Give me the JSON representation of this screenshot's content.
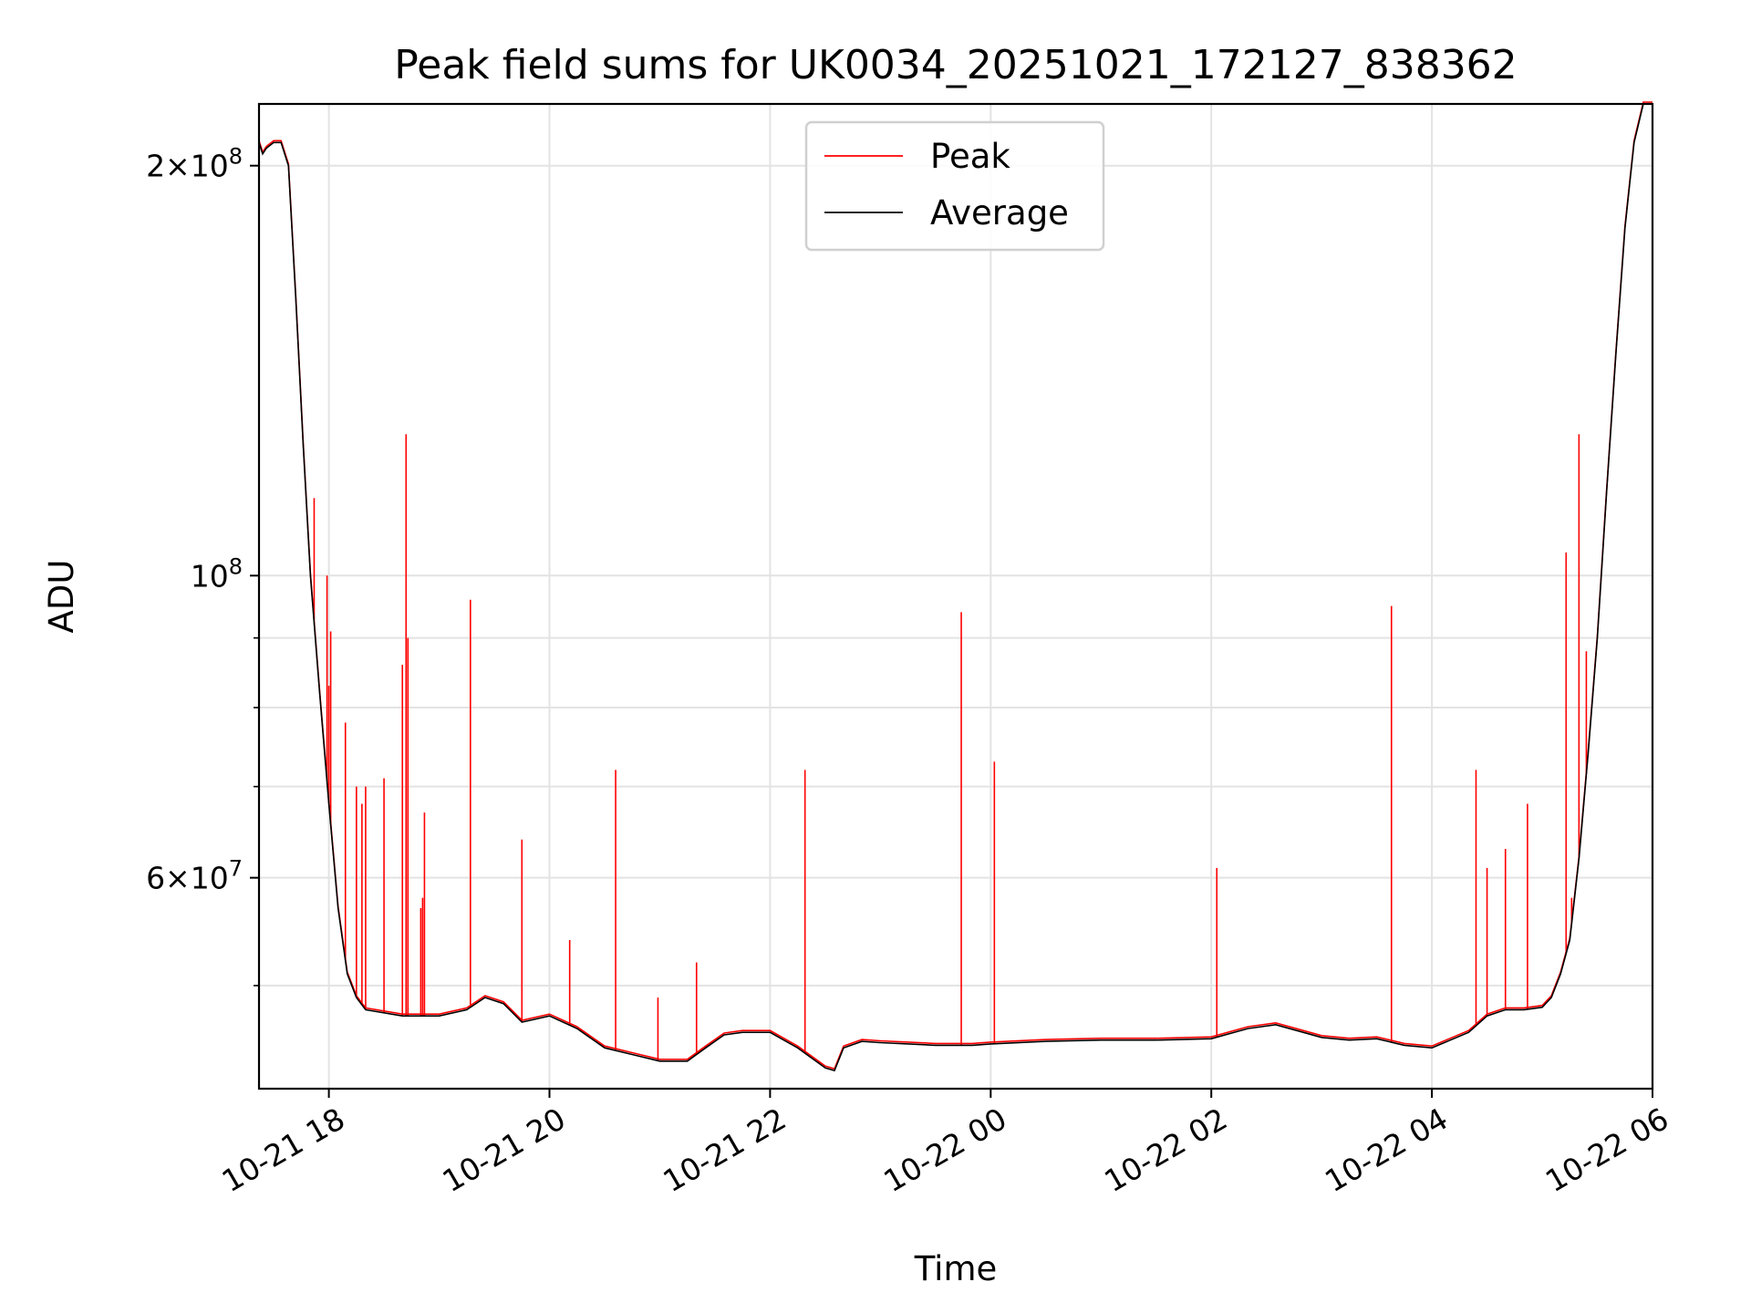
{
  "chart_data": {
    "type": "line",
    "title": "Peak field sums for UK0034_20251021_172127_838362",
    "xlabel": "Time",
    "ylabel": "ADU",
    "x_axis": {
      "kind": "datetime",
      "range": [
        "2025-10-21T17:22",
        "2025-10-22T06:00"
      ],
      "ticks": [
        "2025-10-21T18:00",
        "2025-10-21T20:00",
        "2025-10-21T22:00",
        "2025-10-22T00:00",
        "2025-10-22T02:00",
        "2025-10-22T04:00",
        "2025-10-22T06:00"
      ],
      "tick_labels": [
        "10-21 18",
        "10-21 20",
        "10-21 22",
        "10-22 00",
        "10-22 02",
        "10-22 04",
        "10-22 06"
      ]
    },
    "y_axis": {
      "scale": "log",
      "range": [
        42000000,
        222000000
      ],
      "labeled_ticks": [
        {
          "value": 200000000,
          "mantissa": "2",
          "times": "×",
          "base": "10",
          "exp": "8"
        },
        {
          "value": 100000000,
          "mantissa": "",
          "times": "",
          "base": "10",
          "exp": "8"
        },
        {
          "value": 60000000,
          "mantissa": "6",
          "times": "×",
          "base": "10",
          "exp": "7"
        }
      ],
      "minor_ticks": [
        50000000,
        70000000,
        80000000,
        90000000
      ]
    },
    "grid": true,
    "legend": {
      "placement": "upper center",
      "entries": [
        {
          "label": "Peak",
          "color": "#ff0000"
        },
        {
          "label": "Average",
          "color": "#000000"
        }
      ]
    },
    "series": [
      {
        "name": "Average",
        "color": "#000000",
        "points": [
          [
            "2025-10-21T17:22",
            208000000
          ],
          [
            "2025-10-21T17:24",
            204000000
          ],
          [
            "2025-10-21T17:26",
            206000000
          ],
          [
            "2025-10-21T17:30",
            208000000
          ],
          [
            "2025-10-21T17:34",
            208000000
          ],
          [
            "2025-10-21T17:38",
            200000000
          ],
          [
            "2025-10-21T17:42",
            160000000
          ],
          [
            "2025-10-21T17:46",
            125000000
          ],
          [
            "2025-10-21T17:50",
            100000000
          ],
          [
            "2025-10-21T17:55",
            82000000
          ],
          [
            "2025-10-21T18:00",
            68000000
          ],
          [
            "2025-10-21T18:05",
            57000000
          ],
          [
            "2025-10-21T18:10",
            51000000
          ],
          [
            "2025-10-21T18:15",
            49000000
          ],
          [
            "2025-10-21T18:20",
            48000000
          ],
          [
            "2025-10-21T18:40",
            47500000
          ],
          [
            "2025-10-21T19:00",
            47500000
          ],
          [
            "2025-10-21T19:15",
            48000000
          ],
          [
            "2025-10-21T19:25",
            49000000
          ],
          [
            "2025-10-21T19:35",
            48500000
          ],
          [
            "2025-10-21T19:45",
            47000000
          ],
          [
            "2025-10-21T20:00",
            47500000
          ],
          [
            "2025-10-21T20:15",
            46500000
          ],
          [
            "2025-10-21T20:30",
            45000000
          ],
          [
            "2025-10-21T20:45",
            44500000
          ],
          [
            "2025-10-21T21:00",
            44000000
          ],
          [
            "2025-10-21T21:15",
            44000000
          ],
          [
            "2025-10-21T21:25",
            45000000
          ],
          [
            "2025-10-21T21:35",
            46000000
          ],
          [
            "2025-10-21T21:45",
            46200000
          ],
          [
            "2025-10-21T22:00",
            46200000
          ],
          [
            "2025-10-21T22:15",
            45000000
          ],
          [
            "2025-10-21T22:30",
            43500000
          ],
          [
            "2025-10-21T22:35",
            43300000
          ],
          [
            "2025-10-21T22:40",
            45000000
          ],
          [
            "2025-10-21T22:50",
            45500000
          ],
          [
            "2025-10-21T23:00",
            45400000
          ],
          [
            "2025-10-21T23:30",
            45200000
          ],
          [
            "2025-10-21T23:50",
            45200000
          ],
          [
            "2025-10-22T00:00",
            45300000
          ],
          [
            "2025-10-22T00:30",
            45500000
          ],
          [
            "2025-10-22T01:00",
            45600000
          ],
          [
            "2025-10-22T01:30",
            45600000
          ],
          [
            "2025-10-22T02:00",
            45700000
          ],
          [
            "2025-10-22T02:20",
            46500000
          ],
          [
            "2025-10-22T02:35",
            46800000
          ],
          [
            "2025-10-22T02:50",
            46200000
          ],
          [
            "2025-10-22T03:00",
            45800000
          ],
          [
            "2025-10-22T03:15",
            45600000
          ],
          [
            "2025-10-22T03:30",
            45700000
          ],
          [
            "2025-10-22T03:45",
            45200000
          ],
          [
            "2025-10-22T04:00",
            45000000
          ],
          [
            "2025-10-22T04:10",
            45600000
          ],
          [
            "2025-10-22T04:20",
            46200000
          ],
          [
            "2025-10-22T04:30",
            47500000
          ],
          [
            "2025-10-22T04:40",
            48000000
          ],
          [
            "2025-10-22T04:50",
            48000000
          ],
          [
            "2025-10-22T05:00",
            48200000
          ],
          [
            "2025-10-22T05:05",
            49000000
          ],
          [
            "2025-10-22T05:10",
            51000000
          ],
          [
            "2025-10-22T05:15",
            54000000
          ],
          [
            "2025-10-22T05:20",
            62000000
          ],
          [
            "2025-10-22T05:25",
            74000000
          ],
          [
            "2025-10-22T05:30",
            90000000
          ],
          [
            "2025-10-22T05:35",
            115000000
          ],
          [
            "2025-10-22T05:40",
            145000000
          ],
          [
            "2025-10-22T05:45",
            180000000
          ],
          [
            "2025-10-22T05:50",
            208000000
          ],
          [
            "2025-10-22T05:55",
            222000000
          ],
          [
            "2025-10-22T06:00",
            222000000
          ]
        ]
      },
      {
        "name": "Peak",
        "color": "#ff0000",
        "spikes": [
          [
            "2025-10-21T17:52",
            114000000
          ],
          [
            "2025-10-21T17:59",
            100000000
          ],
          [
            "2025-10-21T18:00",
            83000000
          ],
          [
            "2025-10-21T18:01",
            91000000
          ],
          [
            "2025-10-21T18:09",
            78000000
          ],
          [
            "2025-10-21T18:15",
            70000000
          ],
          [
            "2025-10-21T18:18",
            68000000
          ],
          [
            "2025-10-21T18:20",
            70000000
          ],
          [
            "2025-10-21T18:30",
            71000000
          ],
          [
            "2025-10-21T18:40",
            86000000
          ],
          [
            "2025-10-21T18:42",
            127000000
          ],
          [
            "2025-10-21T18:43",
            90000000
          ],
          [
            "2025-10-21T18:50",
            57000000
          ],
          [
            "2025-10-21T18:51",
            58000000
          ],
          [
            "2025-10-21T18:52",
            67000000
          ],
          [
            "2025-10-21T19:17",
            96000000
          ],
          [
            "2025-10-21T19:45",
            64000000
          ],
          [
            "2025-10-21T20:11",
            54000000
          ],
          [
            "2025-10-21T20:36",
            72000000
          ],
          [
            "2025-10-21T20:59",
            49000000
          ],
          [
            "2025-10-21T21:20",
            52000000
          ],
          [
            "2025-10-21T22:19",
            72000000
          ],
          [
            "2025-10-21T23:44",
            94000000
          ],
          [
            "2025-10-22T00:02",
            73000000
          ],
          [
            "2025-10-22T02:03",
            61000000
          ],
          [
            "2025-10-22T03:38",
            95000000
          ],
          [
            "2025-10-22T04:24",
            72000000
          ],
          [
            "2025-10-22T04:30",
            61000000
          ],
          [
            "2025-10-22T04:40",
            63000000
          ],
          [
            "2025-10-22T04:52",
            68000000
          ],
          [
            "2025-10-22T05:13",
            104000000
          ],
          [
            "2025-10-22T05:16",
            58000000
          ],
          [
            "2025-10-22T05:20",
            127000000
          ],
          [
            "2025-10-22T05:24",
            88000000
          ]
        ]
      }
    ]
  }
}
